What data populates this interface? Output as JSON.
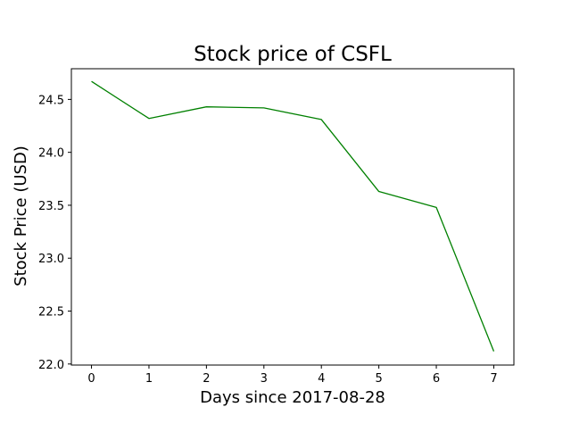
{
  "chart_data": {
    "type": "line",
    "title": "Stock price of CSFL",
    "xlabel": "Days since 2017-08-28",
    "ylabel": "Stock Price (USD)",
    "x": [
      0,
      1,
      2,
      3,
      4,
      5,
      6,
      7
    ],
    "xlim": [
      -0.35,
      7.35
    ],
    "ylim": [
      21.99,
      24.79
    ],
    "xticks": [
      0,
      1,
      2,
      3,
      4,
      5,
      6,
      7
    ],
    "yticks": [
      22.0,
      22.5,
      23.0,
      23.5,
      24.0,
      24.5
    ],
    "ytick_labels": [
      "22.0",
      "22.5",
      "23.0",
      "23.5",
      "24.0",
      "24.5"
    ],
    "grid": false,
    "legend": "none",
    "series": [
      {
        "values": [
          24.67,
          24.32,
          24.43,
          24.42,
          24.31,
          23.63,
          23.48,
          22.12
        ],
        "color": "#008000"
      }
    ]
  }
}
